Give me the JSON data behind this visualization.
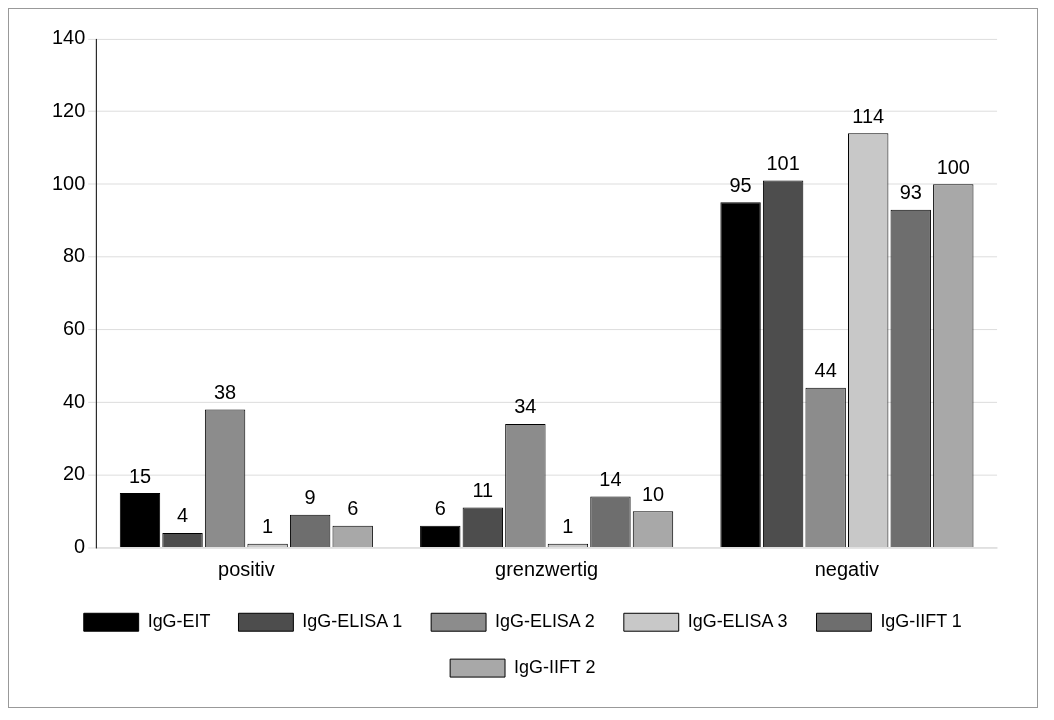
{
  "chart_data": {
    "type": "bar",
    "categories": [
      "positiv",
      "grenzwertig",
      "negativ"
    ],
    "series": [
      {
        "name": "IgG-EIT",
        "color": "#000000",
        "values": [
          15,
          6,
          95
        ]
      },
      {
        "name": "IgG-ELISA 1",
        "color": "#4d4d4d",
        "values": [
          4,
          11,
          101
        ]
      },
      {
        "name": "IgG-ELISA 2",
        "color": "#8c8c8c",
        "values": [
          38,
          34,
          44
        ]
      },
      {
        "name": "IgG-ELISA 3",
        "color": "#c8c8c8",
        "values": [
          1,
          1,
          114
        ]
      },
      {
        "name": "IgG-IIFT 1",
        "color": "#6e6e6e",
        "values": [
          9,
          14,
          93
        ]
      },
      {
        "name": "IgG-IIFT 2",
        "color": "#a8a8a8",
        "values": [
          6,
          10,
          100
        ]
      }
    ],
    "ylim": [
      0,
      140
    ],
    "yticks": [
      0,
      20,
      40,
      60,
      80,
      100,
      120,
      140
    ],
    "grid": "y",
    "legend": "bottom",
    "data_labels": true
  }
}
